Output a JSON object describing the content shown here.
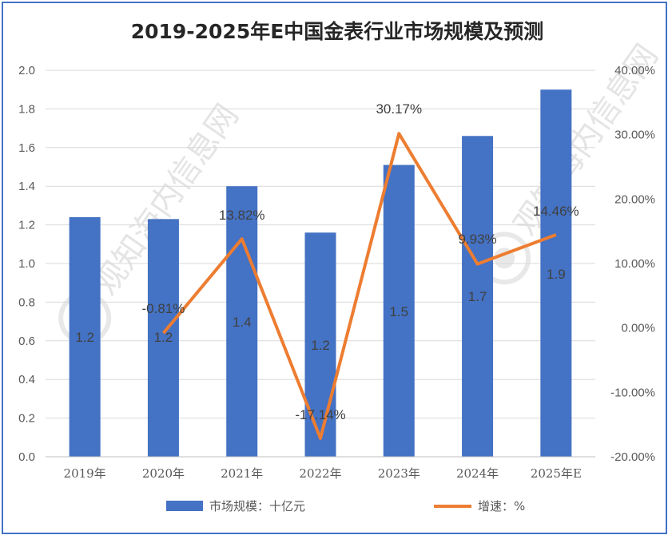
{
  "chart_data": {
    "type": "bar",
    "title": "2019-2025年E中国金表行业市场规模及预测",
    "categories": [
      "2019年",
      "2020年",
      "2021年",
      "2022年",
      "2023年",
      "2024年",
      "2025年E"
    ],
    "series": [
      {
        "name": "市场规模：十亿元",
        "type": "bar",
        "axis": "left",
        "color": "#4472c4",
        "values": [
          1.24,
          1.23,
          1.4,
          1.16,
          1.51,
          1.66,
          1.9
        ],
        "labels": [
          "1.2",
          "1.2",
          "1.4",
          "1.2",
          "1.5",
          "1.7",
          "1.9"
        ]
      },
      {
        "name": "增速：%",
        "type": "line",
        "axis": "right",
        "color": "#ed7d31",
        "values": [
          null,
          -0.81,
          13.82,
          -17.14,
          30.17,
          9.93,
          14.46
        ],
        "labels": [
          "",
          "-0.81%",
          "13.82%",
          "-17.14%",
          "30.17%",
          "9.93%",
          "14.46%"
        ]
      }
    ],
    "ylim_left": [
      0,
      2.0
    ],
    "yticks_left": [
      "0.0",
      "0.2",
      "0.4",
      "0.6",
      "0.8",
      "1.0",
      "1.2",
      "1.4",
      "1.6",
      "1.8",
      "2.0"
    ],
    "ylim_right": [
      -20,
      40
    ],
    "yticks_right": [
      "-20.00%",
      "-10.00%",
      "0.00%",
      "10.00%",
      "20.00%",
      "30.00%",
      "40.00%"
    ],
    "grid": true,
    "legend_position": "bottom",
    "watermark": "观知海内信息网 WWW.DONGQIANGQB.COM"
  }
}
